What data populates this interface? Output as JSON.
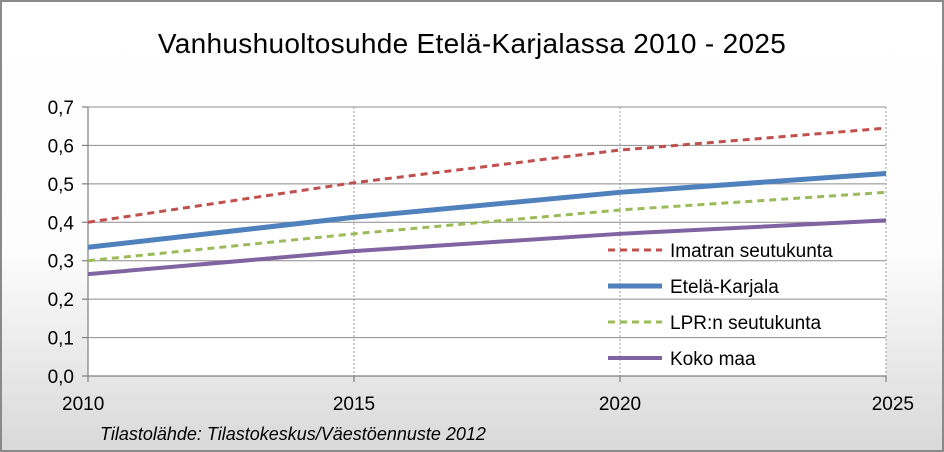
{
  "chart_data": {
    "type": "line",
    "title": "Vanhushuoltosuhde Etelä-Karjalassa 2010 - 2025",
    "x": [
      2010,
      2015,
      2020,
      2025
    ],
    "xticks": [
      "2010",
      "2015",
      "2020",
      "2025"
    ],
    "xlim": [
      2010,
      2025
    ],
    "ylim": [
      0,
      0.7
    ],
    "yticks": [
      "0,0",
      "0,1",
      "0,2",
      "0,3",
      "0,4",
      "0,5",
      "0,6",
      "0,7"
    ],
    "grid": true,
    "legend_position": "lower-right",
    "series": [
      {
        "name": "Imatran seutukunta",
        "values": [
          0.4,
          0.503,
          0.588,
          0.645
        ],
        "color": "#c0504d",
        "style": "dashed"
      },
      {
        "name": "Etelä-Karjala",
        "values": [
          0.335,
          0.413,
          0.478,
          0.527
        ],
        "color": "#4f81bd",
        "style": "solid-thick"
      },
      {
        "name": "LPR:n seutukunta",
        "values": [
          0.3,
          0.37,
          0.432,
          0.478
        ],
        "color": "#9bbb59",
        "style": "dashed"
      },
      {
        "name": "Koko maa",
        "values": [
          0.265,
          0.325,
          0.37,
          0.405
        ],
        "color": "#8064a2",
        "style": "solid"
      }
    ]
  },
  "source": "Tilastolähde: Tilastokeskus/Väestöennuste 2012"
}
